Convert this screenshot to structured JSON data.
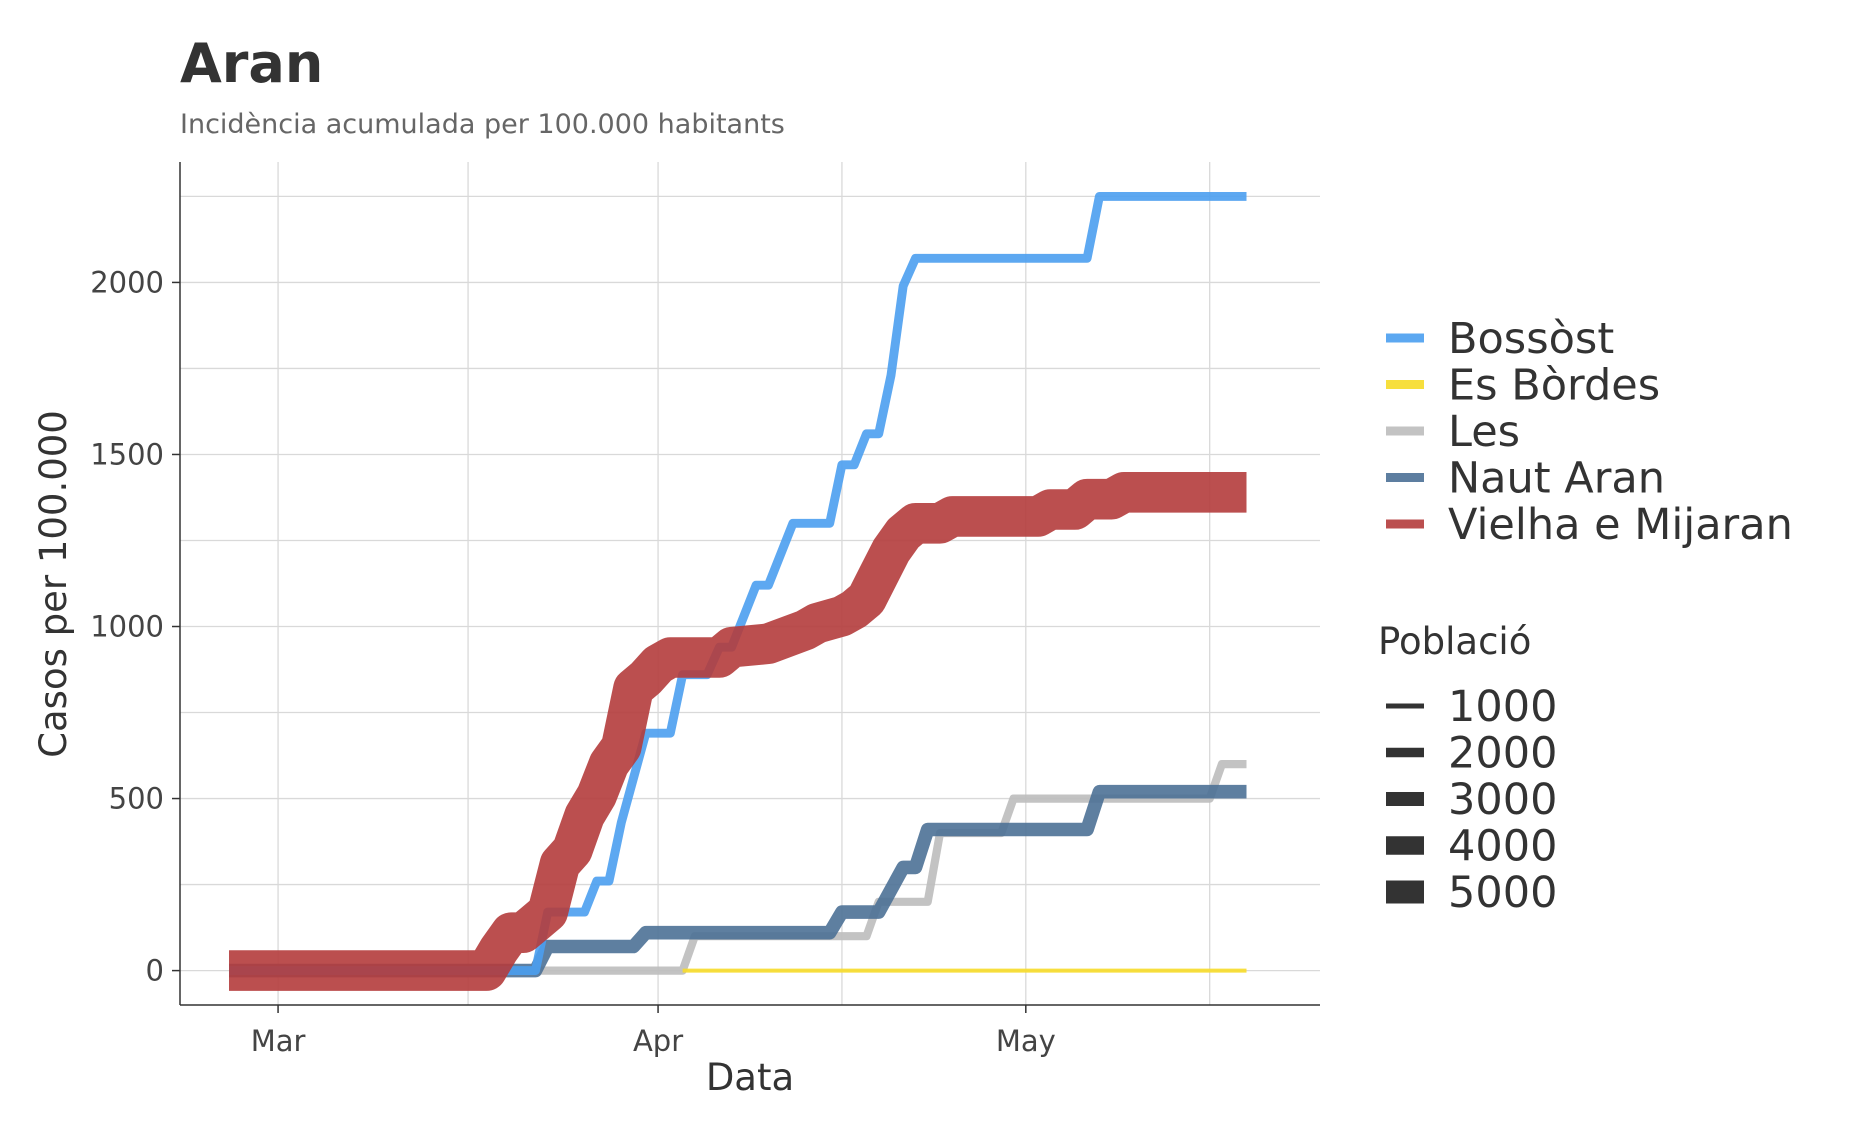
{
  "chart_data": {
    "type": "line",
    "title": "Aran",
    "subtitle": "Incidència acumulada per 100.000 habitants",
    "xlabel": "Data",
    "ylabel": "Casos per 100.000",
    "x_ticks": [
      {
        "date": "2020-03-01",
        "label": "Mar"
      },
      {
        "date": "2020-04-01",
        "label": "Apr"
      },
      {
        "date": "2020-05-01",
        "label": "May"
      }
    ],
    "xlim": [
      "2020-02-22",
      "2020-05-25"
    ],
    "ylim": [
      -100,
      2350
    ],
    "y_ticks": [
      0,
      500,
      1000,
      1500,
      2000
    ],
    "grid": true,
    "legend": {
      "position": "right",
      "color_title": "",
      "size_title": "Població",
      "size_entries": [
        1000,
        2000,
        3000,
        4000,
        5000
      ]
    },
    "series": [
      {
        "name": "Les",
        "color": "#bdbdbd",
        "population": 1000,
        "points": [
          [
            "2020-02-26",
            0
          ],
          [
            "2020-04-03",
            0
          ],
          [
            "2020-04-04",
            100
          ],
          [
            "2020-04-18",
            100
          ],
          [
            "2020-04-19",
            200
          ],
          [
            "2020-04-23",
            200
          ],
          [
            "2020-04-24",
            400
          ],
          [
            "2020-04-29",
            400
          ],
          [
            "2020-04-30",
            500
          ],
          [
            "2020-05-16",
            500
          ],
          [
            "2020-05-17",
            600
          ],
          [
            "2020-05-19",
            600
          ]
        ]
      },
      {
        "name": "Naut Aran",
        "color": "#4c7196",
        "population": 1750,
        "points": [
          [
            "2020-02-26",
            0
          ],
          [
            "2020-03-22",
            0
          ],
          [
            "2020-03-23",
            70
          ],
          [
            "2020-03-30",
            70
          ],
          [
            "2020-03-31",
            110
          ],
          [
            "2020-04-15",
            110
          ],
          [
            "2020-04-16",
            170
          ],
          [
            "2020-04-19",
            170
          ],
          [
            "2020-04-21",
            300
          ],
          [
            "2020-04-22",
            300
          ],
          [
            "2020-04-23",
            410
          ],
          [
            "2020-05-06",
            410
          ],
          [
            "2020-05-07",
            520
          ],
          [
            "2020-05-19",
            520
          ]
        ]
      },
      {
        "name": "Es Bòrdes",
        "color": "#f7dc29",
        "population": 250,
        "points": [
          [
            "2020-04-03",
            0
          ],
          [
            "2020-05-19",
            0
          ]
        ]
      },
      {
        "name": "Bossòst",
        "color": "#4b9ff0",
        "population": 1100,
        "points": [
          [
            "2020-02-26",
            0
          ],
          [
            "2020-03-22",
            0
          ],
          [
            "2020-03-23",
            170
          ],
          [
            "2020-03-26",
            170
          ],
          [
            "2020-03-27",
            260
          ],
          [
            "2020-03-28",
            260
          ],
          [
            "2020-03-29",
            430
          ],
          [
            "2020-03-31",
            690
          ],
          [
            "2020-04-02",
            690
          ],
          [
            "2020-04-03",
            860
          ],
          [
            "2020-04-05",
            860
          ],
          [
            "2020-04-06",
            940
          ],
          [
            "2020-04-07",
            940
          ],
          [
            "2020-04-09",
            1120
          ],
          [
            "2020-04-10",
            1120
          ],
          [
            "2020-04-12",
            1300
          ],
          [
            "2020-04-15",
            1300
          ],
          [
            "2020-04-16",
            1470
          ],
          [
            "2020-04-17",
            1470
          ],
          [
            "2020-04-18",
            1560
          ],
          [
            "2020-04-19",
            1560
          ],
          [
            "2020-04-20",
            1730
          ],
          [
            "2020-04-21",
            1990
          ],
          [
            "2020-04-22",
            2070
          ],
          [
            "2020-05-06",
            2070
          ],
          [
            "2020-05-07",
            2250
          ],
          [
            "2020-05-19",
            2250
          ]
        ]
      },
      {
        "name": "Vielha e Mijaran",
        "color": "#b43c3c",
        "population": 5500,
        "points": [
          [
            "2020-02-26",
            0
          ],
          [
            "2020-03-18",
            0
          ],
          [
            "2020-03-19",
            60
          ],
          [
            "2020-03-20",
            110
          ],
          [
            "2020-03-21",
            110
          ],
          [
            "2020-03-22",
            140
          ],
          [
            "2020-03-23",
            170
          ],
          [
            "2020-03-24",
            310
          ],
          [
            "2020-03-25",
            350
          ],
          [
            "2020-03-26",
            450
          ],
          [
            "2020-03-27",
            510
          ],
          [
            "2020-03-28",
            600
          ],
          [
            "2020-03-29",
            650
          ],
          [
            "2020-03-30",
            820
          ],
          [
            "2020-03-31",
            850
          ],
          [
            "2020-04-01",
            890
          ],
          [
            "2020-04-02",
            910
          ],
          [
            "2020-04-06",
            910
          ],
          [
            "2020-04-07",
            940
          ],
          [
            "2020-04-10",
            950
          ],
          [
            "2020-04-13",
            990
          ],
          [
            "2020-04-14",
            1010
          ],
          [
            "2020-04-15",
            1020
          ],
          [
            "2020-04-16",
            1030
          ],
          [
            "2020-04-17",
            1050
          ],
          [
            "2020-04-18",
            1080
          ],
          [
            "2020-04-19",
            1150
          ],
          [
            "2020-04-20",
            1220
          ],
          [
            "2020-04-21",
            1270
          ],
          [
            "2020-04-22",
            1300
          ],
          [
            "2020-04-24",
            1300
          ],
          [
            "2020-04-25",
            1320
          ],
          [
            "2020-05-02",
            1320
          ],
          [
            "2020-05-03",
            1340
          ],
          [
            "2020-05-05",
            1340
          ],
          [
            "2020-05-06",
            1370
          ],
          [
            "2020-05-08",
            1370
          ],
          [
            "2020-05-09",
            1390
          ],
          [
            "2020-05-19",
            1390
          ]
        ]
      }
    ],
    "legend_order": [
      "Bossòst",
      "Es Bòrdes",
      "Les",
      "Naut Aran",
      "Vielha e Mijaran"
    ]
  }
}
